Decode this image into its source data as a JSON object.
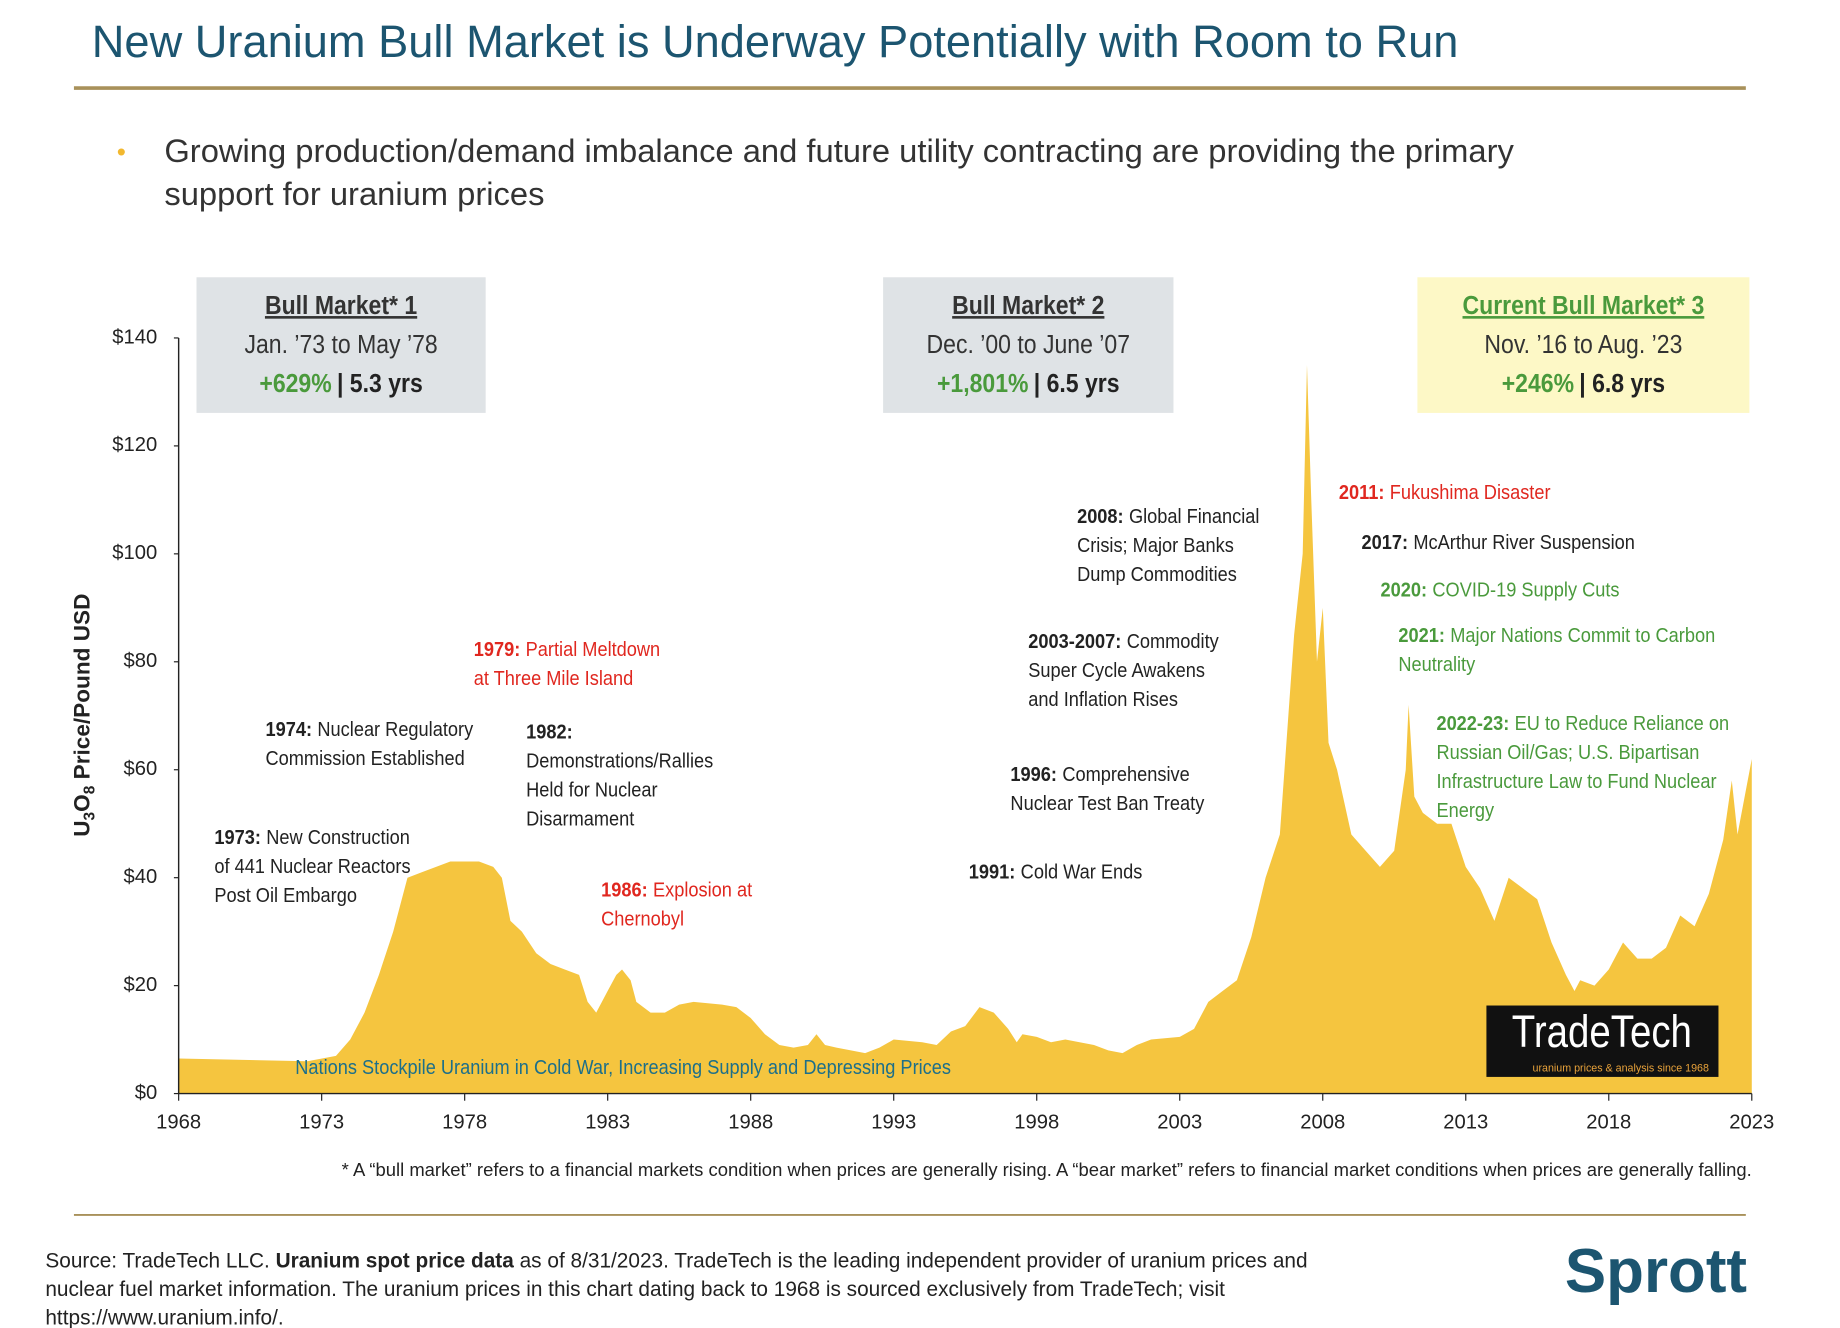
{
  "header": {
    "title": "New Uranium Bull Market is Underway Potentially with Room to Run"
  },
  "bullet": {
    "symbol": "•",
    "lines": [
      "Growing production/demand imbalance and future utility contracting are providing the primary",
      "support for uranium prices"
    ]
  },
  "boxes": [
    {
      "title": "Bull Market* 1",
      "period": "Jan. ’73 to May ’78",
      "gain": "+629%",
      "duration": "| 5.3 yrs"
    },
    {
      "title": "Bull Market* 2",
      "period": "Dec. ’00 to June ’07",
      "gain": "+1,801%",
      "duration": "| 6.5 yrs"
    },
    {
      "title": "Current Bull Market* 3",
      "period": "Nov. ’16 to Aug. ’23",
      "gain": "+246%",
      "duration": "| 6.8 yrs"
    }
  ],
  "chart_data": {
    "type": "area",
    "color": "#f5c53f",
    "ylabel_parts": [
      "U",
      "3",
      "O",
      "8",
      " Price/Pound USD"
    ],
    "x": [
      1968,
      1972.5,
      1973.5,
      1974,
      1974.5,
      1975,
      1975.5,
      1976,
      1976.5,
      1977,
      1977.5,
      1978,
      1978.5,
      1979,
      1979.3,
      1979.6,
      1980,
      1980.5,
      1981,
      1981.5,
      1982,
      1982.3,
      1982.6,
      1983,
      1983.3,
      1983.5,
      1983.8,
      1984,
      1984.5,
      1985,
      1985.5,
      1986,
      1987,
      1987.5,
      1988,
      1988.5,
      1989,
      1989.5,
      1990,
      1990.3,
      1990.6,
      1991,
      1991.5,
      1992,
      1992.5,
      1993,
      1994,
      1994.5,
      1995,
      1995.5,
      1996,
      1996.5,
      1997,
      1997.3,
      1997.5,
      1998,
      1998.5,
      1999,
      2000,
      2000.5,
      2001,
      2001.5,
      2002,
      2003,
      2003.5,
      2004,
      2004.5,
      2005,
      2005.5,
      2006,
      2006.5,
      2007,
      2007.3,
      2007.45,
      2007.6,
      2007.8,
      2008,
      2008.2,
      2008.5,
      2009,
      2009.5,
      2010,
      2010.5,
      2010.9,
      2011,
      2011.2,
      2011.5,
      2012,
      2012.5,
      2013,
      2013.5,
      2014,
      2014.5,
      2015,
      2015.5,
      2016,
      2016.5,
      2016.8,
      2017,
      2017.5,
      2018,
      2018.5,
      2019,
      2019.5,
      2020,
      2020.5,
      2021,
      2021.5,
      2022,
      2022.3,
      2022.5,
      2023
    ],
    "values": [
      6.5,
      6,
      7,
      10,
      15,
      22,
      30,
      40,
      41,
      42,
      43,
      43,
      43,
      42,
      40,
      32,
      30,
      26,
      24,
      23,
      22,
      17,
      15,
      19,
      22,
      23,
      21,
      17,
      15,
      15,
      16.5,
      17,
      16.5,
      16,
      14,
      11,
      9,
      8.5,
      9,
      11,
      9,
      8.5,
      8,
      7.5,
      8.5,
      10,
      9.5,
      9,
      11.5,
      12.5,
      16,
      15,
      12,
      9.5,
      11,
      10.5,
      9.5,
      10,
      9,
      8,
      7.5,
      9,
      10,
      10.5,
      12,
      17,
      19,
      21,
      29,
      40,
      48,
      85,
      100,
      135,
      110,
      80,
      90,
      65,
      60,
      48,
      45,
      42,
      45,
      60,
      72,
      55,
      52,
      50,
      50,
      42,
      38,
      32,
      40,
      38,
      36,
      28,
      22,
      19,
      21,
      20,
      23,
      28,
      25,
      25,
      27,
      33,
      31,
      37,
      47,
      58,
      48,
      62
    ],
    "xlim": [
      1968,
      2023
    ],
    "xticks": [
      1968,
      1973,
      1978,
      1983,
      1988,
      1993,
      1998,
      2003,
      2008,
      2013,
      2018,
      2023
    ],
    "ylim": [
      0,
      140
    ],
    "yticks": [
      {
        "value": 0,
        "label": "$0"
      },
      {
        "value": 20,
        "label": "$20"
      },
      {
        "value": 40,
        "label": "$40"
      },
      {
        "value": 60,
        "label": "$60"
      },
      {
        "value": 80,
        "label": "$80"
      },
      {
        "value": 100,
        "label": "$100"
      },
      {
        "value": 120,
        "label": "$120"
      },
      {
        "value": 140,
        "label": "$140"
      }
    ],
    "grid": false,
    "note": "Nations Stockpile Uranium in Cold War, Increasing Supply and Depressing Prices",
    "annotations": [
      {
        "label": "1973:",
        "lines": [
          "New Construction",
          "of 441 Nuclear Reactors",
          "Post Oil Embargo"
        ],
        "color": "#222222"
      },
      {
        "label": "1974:",
        "lines": [
          "Nuclear Regulatory",
          "Commission Established"
        ],
        "color": "#222222"
      },
      {
        "label": "1979:",
        "lines": [
          "Partial Meltdown",
          "at Three Mile Island"
        ],
        "color": "#e0271f"
      },
      {
        "label": "1982:",
        "lines": [
          "",
          "Demonstrations/Rallies",
          "Held for Nuclear",
          "Disarmament"
        ],
        "color": "#222222"
      },
      {
        "label": "1986:",
        "lines": [
          "Explosion at",
          "Chernobyl"
        ],
        "color": "#e0271f"
      },
      {
        "label": "1991:",
        "lines": [
          "Cold War Ends"
        ],
        "color": "#222222"
      },
      {
        "label": "1996:",
        "lines": [
          "Comprehensive",
          "Nuclear Test Ban Treaty"
        ],
        "color": "#222222"
      },
      {
        "label": "2003-2007:",
        "lines": [
          "Commodity",
          "Super Cycle Awakens",
          "and Inflation Rises"
        ],
        "color": "#222222"
      },
      {
        "label": "2008:",
        "lines": [
          "Global Financial",
          "Crisis; Major Banks",
          "Dump Commodities"
        ],
        "color": "#222222"
      },
      {
        "label": "2011:",
        "lines": [
          "Fukushima Disaster"
        ],
        "color": "#e0271f"
      },
      {
        "label": "2017:",
        "lines": [
          "McArthur River Suspension"
        ],
        "color": "#222222"
      },
      {
        "label": "2020:",
        "lines": [
          "COVID-19 Supply Cuts"
        ],
        "color": "#4a9a3c"
      },
      {
        "label": "2021:",
        "lines": [
          "Major Nations Commit to Carbon",
          "Neutrality"
        ],
        "color": "#4a9a3c"
      },
      {
        "label": "2022-23:",
        "lines": [
          "EU to Reduce Reliance on",
          "Russian Oil/Gas; U.S. Bipartisan",
          "Infrastructure Law to Fund Nuclear",
          "Energy"
        ],
        "color": "#4a9a3c"
      }
    ]
  },
  "logo": {
    "name": "TradeTech",
    "tagline": "uranium prices & analysis since 1968"
  },
  "footnote": "* A “bull market” refers to a financial markets condition when prices are generally rising. A “bear market” refers to financial market conditions when prices are generally falling.",
  "source_lines": [
    [
      {
        "text": "Source: TradeTech LLC. "
      },
      {
        "text": "Uranium spot price data",
        "bold": true
      },
      {
        "text": " as of 8/31/2023. TradeTech is the leading independent provider of uranium prices and"
      }
    ],
    [
      {
        "text": "nuclear fuel market information. The uranium prices in this chart dating back to 1968 is sourced exclusively from TradeTech; visit"
      }
    ],
    [
      {
        "text": "https://www.uranium.info/."
      }
    ]
  ],
  "brand": "Sprott"
}
